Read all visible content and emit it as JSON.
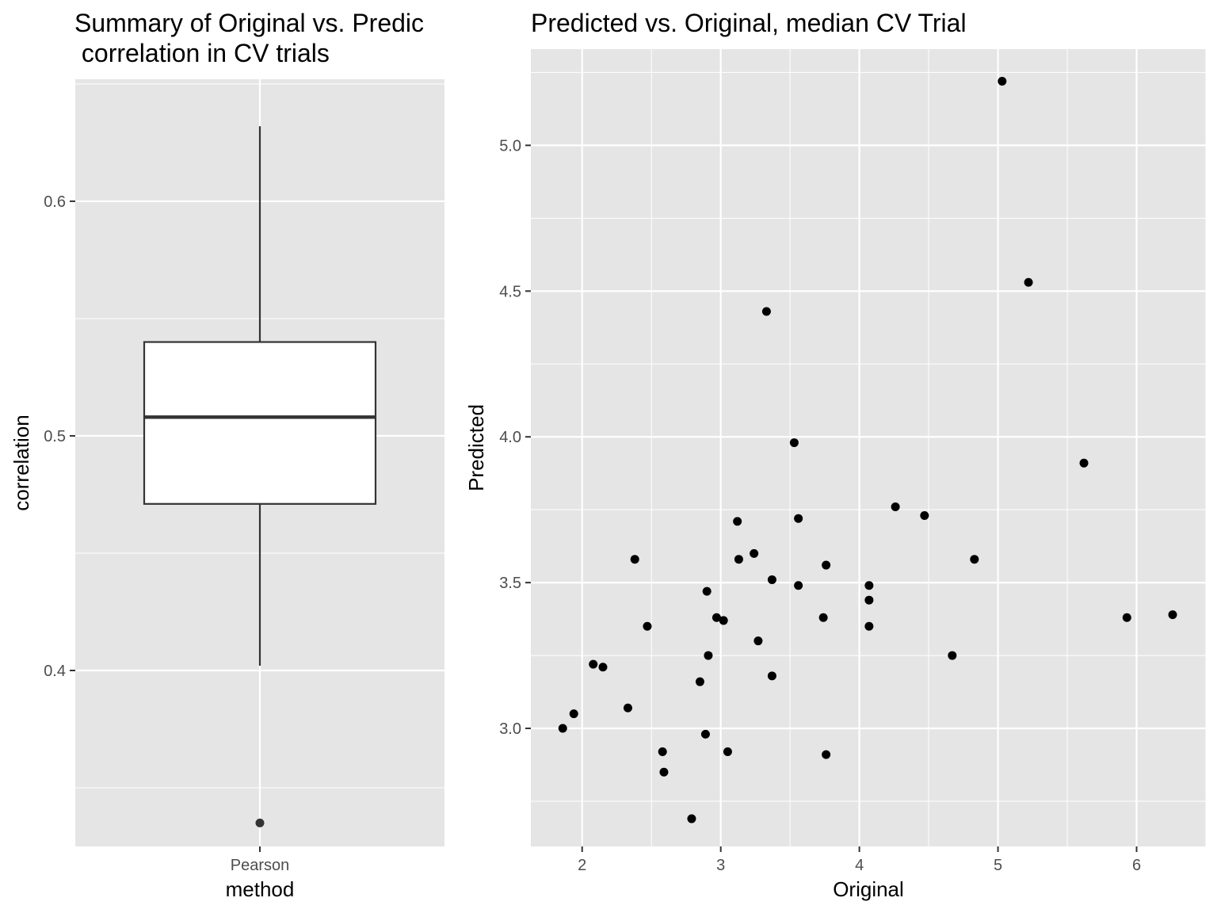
{
  "chart_data": [
    {
      "type": "box",
      "title_lines": [
        "Summary of Original vs. Predic",
        " correlation in CV trials"
      ],
      "xlabel": "method",
      "ylabel": "correlation",
      "categories": [
        "Pearson"
      ],
      "box": {
        "whisker_low": 0.402,
        "q1": 0.471,
        "median": 0.508,
        "q3": 0.54,
        "whisker_high": 0.632
      },
      "outliers": [
        0.335
      ],
      "ylim": [
        0.325,
        0.652
      ],
      "yticks": [
        0.4,
        0.5,
        0.6
      ],
      "ytick_labels": [
        "0.4",
        "0.5",
        "0.6"
      ],
      "grid": true,
      "colors": {
        "panel": "#e5e5e5",
        "grid": "#ffffff",
        "box_fill": "#ffffff",
        "box_line": "#333333",
        "point": "#333333"
      }
    },
    {
      "type": "scatter",
      "title": "Predicted vs. Original, median CV Trial",
      "xlabel": "Original",
      "ylabel": "Predicted",
      "xlim": [
        1.63,
        6.5
      ],
      "ylim": [
        2.595,
        5.33
      ],
      "xticks": [
        2,
        3,
        4,
        5,
        6
      ],
      "xtick_labels": [
        "2",
        "3",
        "4",
        "5",
        "6"
      ],
      "yticks": [
        3.0,
        3.5,
        4.0,
        4.5,
        5.0
      ],
      "ytick_labels": [
        "3.0",
        "3.5",
        "4.0",
        "4.5",
        "5.0"
      ],
      "grid": true,
      "points": [
        [
          1.86,
          3.0
        ],
        [
          1.94,
          3.05
        ],
        [
          2.08,
          3.22
        ],
        [
          2.15,
          3.21
        ],
        [
          2.33,
          3.07
        ],
        [
          2.38,
          3.58
        ],
        [
          2.47,
          3.35
        ],
        [
          2.58,
          2.92
        ],
        [
          2.59,
          2.85
        ],
        [
          2.79,
          2.69
        ],
        [
          2.85,
          3.16
        ],
        [
          2.89,
          2.98
        ],
        [
          2.9,
          3.47
        ],
        [
          2.91,
          3.25
        ],
        [
          2.97,
          3.38
        ],
        [
          3.02,
          3.37
        ],
        [
          3.05,
          2.92
        ],
        [
          3.12,
          3.71
        ],
        [
          3.13,
          3.58
        ],
        [
          3.24,
          3.6
        ],
        [
          3.27,
          3.3
        ],
        [
          3.33,
          4.43
        ],
        [
          3.37,
          3.51
        ],
        [
          3.37,
          3.18
        ],
        [
          3.53,
          3.98
        ],
        [
          3.56,
          3.72
        ],
        [
          3.56,
          3.49
        ],
        [
          3.74,
          3.38
        ],
        [
          3.76,
          3.56
        ],
        [
          3.76,
          2.91
        ],
        [
          4.07,
          3.49
        ],
        [
          4.07,
          3.44
        ],
        [
          4.07,
          3.35
        ],
        [
          4.26,
          3.76
        ],
        [
          4.47,
          3.73
        ],
        [
          4.67,
          3.25
        ],
        [
          4.83,
          3.58
        ],
        [
          5.03,
          5.22
        ],
        [
          5.22,
          4.53
        ],
        [
          5.62,
          3.91
        ],
        [
          5.93,
          3.38
        ],
        [
          6.26,
          3.39
        ]
      ],
      "colors": {
        "panel": "#e5e5e5",
        "grid": "#ffffff",
        "point": "#000000"
      }
    }
  ]
}
